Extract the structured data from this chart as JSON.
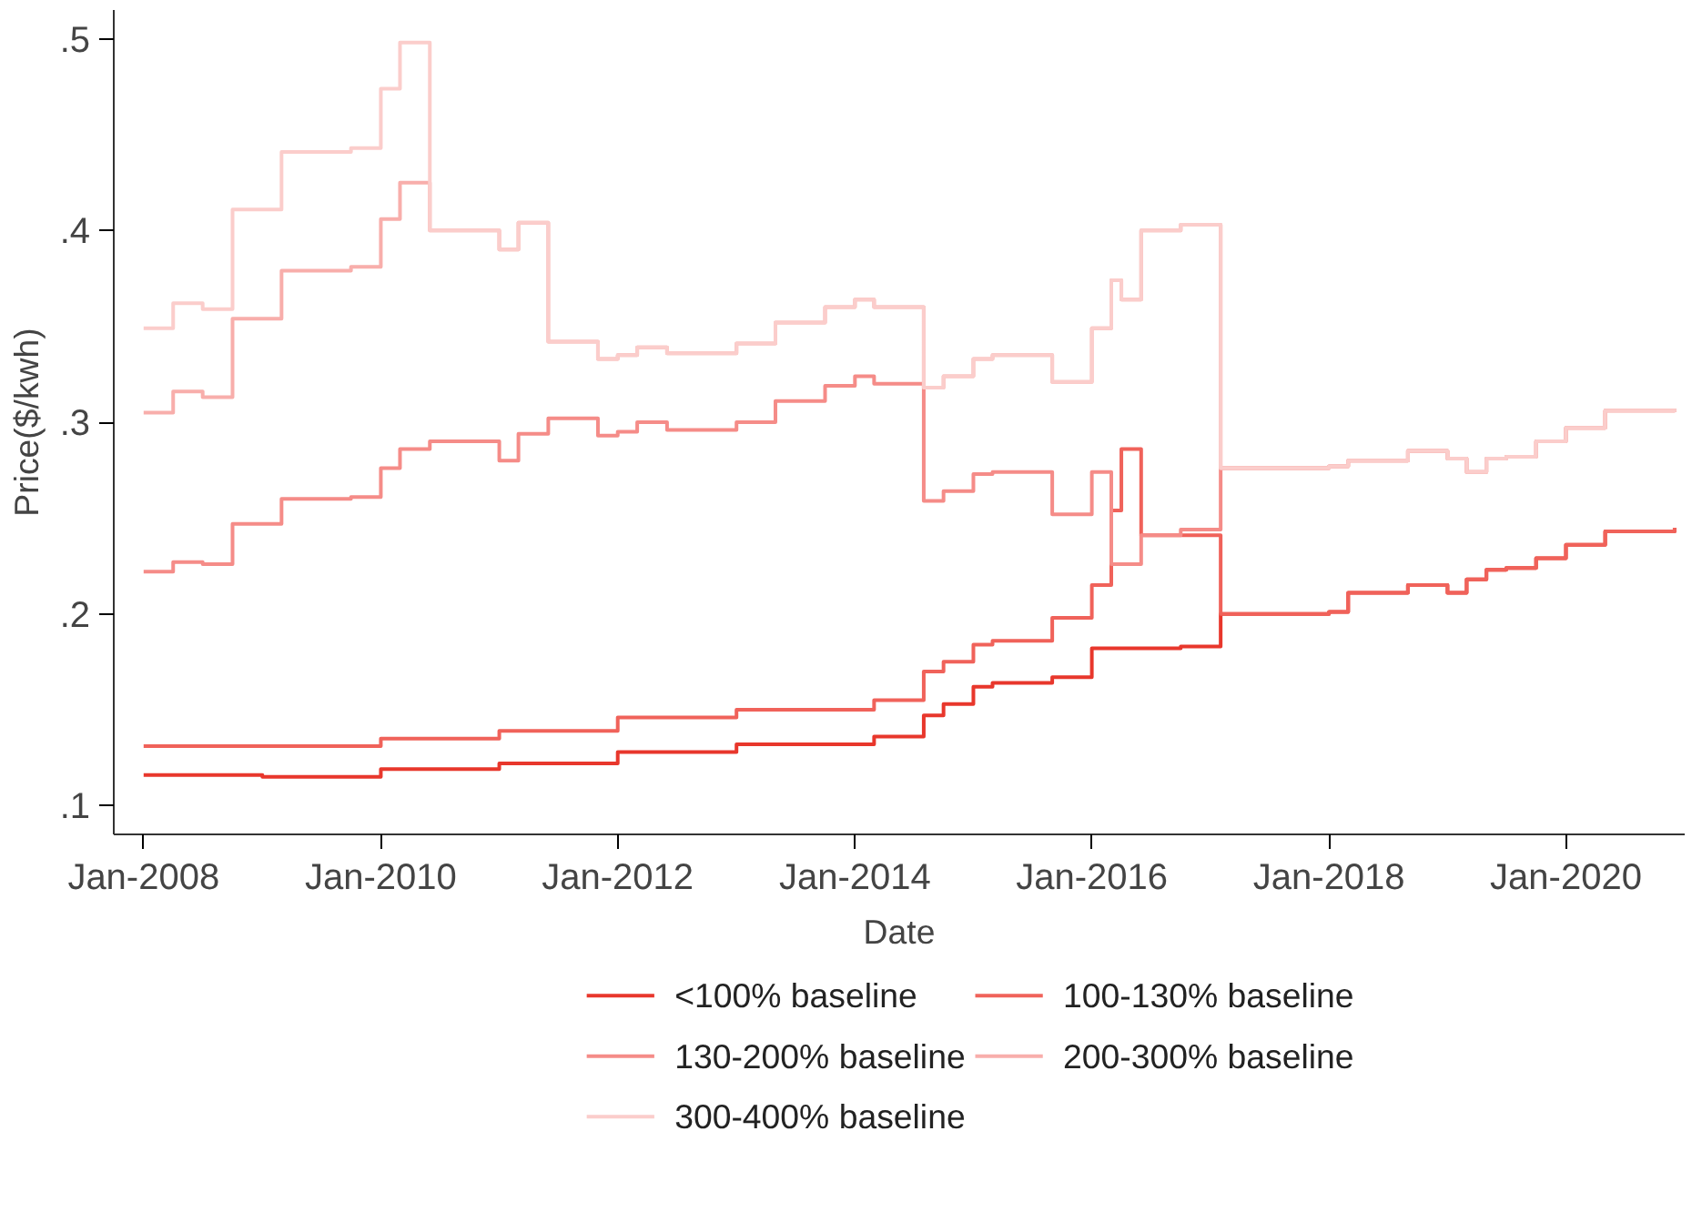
{
  "chart_data": {
    "type": "step",
    "xlabel": "Date",
    "ylabel": "Price($/kwh)",
    "xlim": [
      "2007-10",
      "2021-01"
    ],
    "ylim": [
      0.085,
      0.515
    ],
    "xticks": [
      {
        "value": "2008-01",
        "label": "Jan-2008"
      },
      {
        "value": "2010-01",
        "label": "Jan-2010"
      },
      {
        "value": "2012-01",
        "label": "Jan-2012"
      },
      {
        "value": "2014-01",
        "label": "Jan-2014"
      },
      {
        "value": "2016-01",
        "label": "Jan-2016"
      },
      {
        "value": "2018-01",
        "label": "Jan-2018"
      },
      {
        "value": "2020-01",
        "label": "Jan-2020"
      }
    ],
    "yticks": [
      {
        "value": 0.1,
        "label": ".1"
      },
      {
        "value": 0.2,
        "label": ".2"
      },
      {
        "value": 0.3,
        "label": ".3"
      },
      {
        "value": 0.4,
        "label": ".4"
      },
      {
        "value": 0.5,
        "label": ".5"
      }
    ],
    "grid": false,
    "legend": "bottom",
    "marker": "none",
    "line_style": "solid",
    "series": [
      {
        "name": "<100% baseline",
        "color": "#e8372c",
        "x": [
          "2008-01",
          "2009-01",
          "2010-01",
          "2011-01",
          "2012-01",
          "2013-01",
          "2014-03",
          "2014-08",
          "2014-10",
          "2015-01",
          "2015-03",
          "2015-09",
          "2016-01",
          "2016-10",
          "2017-02",
          "2018-01",
          "2018-03",
          "2018-09",
          "2019-01",
          "2019-03",
          "2019-05",
          "2019-07",
          "2019-10",
          "2020-01",
          "2020-05",
          "2020-12"
        ],
        "values": [
          0.116,
          0.115,
          0.119,
          0.122,
          0.128,
          0.132,
          0.136,
          0.147,
          0.153,
          0.162,
          0.164,
          0.167,
          0.182,
          0.183,
          0.2,
          0.201,
          0.211,
          0.215,
          0.211,
          0.218,
          0.223,
          0.224,
          0.229,
          0.236,
          0.243,
          0.245
        ]
      },
      {
        "name": "100-130% baseline",
        "color": "#f0625a",
        "x": [
          "2008-01",
          "2010-01",
          "2011-01",
          "2012-01",
          "2013-01",
          "2014-03",
          "2014-08",
          "2014-10",
          "2015-01",
          "2015-03",
          "2015-09",
          "2016-01",
          "2016-03",
          "2016-04",
          "2016-06",
          "2017-02",
          "2018-01",
          "2018-03",
          "2018-09",
          "2019-01",
          "2019-03",
          "2019-05",
          "2019-07",
          "2019-10",
          "2020-01",
          "2020-05",
          "2020-12"
        ],
        "values": [
          0.131,
          0.135,
          0.139,
          0.146,
          0.15,
          0.155,
          0.17,
          0.175,
          0.184,
          0.186,
          0.198,
          0.215,
          0.254,
          0.286,
          0.241,
          0.2,
          0.201,
          0.211,
          0.215,
          0.211,
          0.218,
          0.223,
          0.224,
          0.229,
          0.236,
          0.243,
          0.245
        ]
      },
      {
        "name": "130-200% baseline",
        "color": "#f58c88",
        "x": [
          "2008-01",
          "2008-04",
          "2008-07",
          "2008-10",
          "2009-03",
          "2009-10",
          "2010-01",
          "2010-03",
          "2010-06",
          "2011-01",
          "2011-03",
          "2011-06",
          "2011-11",
          "2012-01",
          "2012-03",
          "2012-06",
          "2013-01",
          "2013-05",
          "2013-10",
          "2014-01",
          "2014-03",
          "2014-08",
          "2014-10",
          "2015-01",
          "2015-03",
          "2015-09",
          "2016-01",
          "2016-03",
          "2016-06",
          "2016-10",
          "2017-02",
          "2018-01",
          "2018-03",
          "2018-09",
          "2019-01",
          "2019-03",
          "2019-05",
          "2019-07",
          "2019-10",
          "2020-01",
          "2020-05",
          "2020-12"
        ],
        "values": [
          0.222,
          0.227,
          0.226,
          0.247,
          0.26,
          0.261,
          0.276,
          0.286,
          0.29,
          0.28,
          0.294,
          0.302,
          0.293,
          0.295,
          0.3,
          0.296,
          0.3,
          0.311,
          0.319,
          0.324,
          0.32,
          0.259,
          0.264,
          0.273,
          0.274,
          0.252,
          0.274,
          0.226,
          0.241,
          0.244,
          0.276,
          0.277,
          0.28,
          0.285,
          0.281,
          0.274,
          0.281,
          0.282,
          0.29,
          0.297,
          0.306,
          0.307
        ]
      },
      {
        "name": "200-300% baseline",
        "color": "#f8aeab",
        "x": [
          "2008-01",
          "2008-04",
          "2008-07",
          "2008-10",
          "2009-03",
          "2009-10",
          "2010-01",
          "2010-03",
          "2010-06",
          "2011-01",
          "2011-03",
          "2011-06",
          "2011-11",
          "2012-01",
          "2012-03",
          "2012-06",
          "2013-01",
          "2013-05",
          "2013-10",
          "2014-01",
          "2014-03",
          "2014-08",
          "2014-10",
          "2015-01",
          "2015-03",
          "2015-09",
          "2016-01",
          "2016-03",
          "2016-04",
          "2016-06",
          "2016-10",
          "2017-02",
          "2018-01",
          "2018-03",
          "2018-09",
          "2019-01",
          "2019-03",
          "2019-05",
          "2019-07",
          "2019-10",
          "2020-01",
          "2020-05",
          "2020-12"
        ],
        "values": [
          0.305,
          0.316,
          0.313,
          0.354,
          0.379,
          0.381,
          0.406,
          0.425,
          0.4,
          0.39,
          0.404,
          0.342,
          0.333,
          0.335,
          0.339,
          0.336,
          0.341,
          0.352,
          0.36,
          0.364,
          0.36,
          0.318,
          0.324,
          0.333,
          0.335,
          0.321,
          0.349,
          0.374,
          0.364,
          0.4,
          0.403,
          0.276,
          0.277,
          0.28,
          0.285,
          0.281,
          0.274,
          0.281,
          0.282,
          0.29,
          0.297,
          0.306,
          0.307
        ]
      },
      {
        "name": "300-400% baseline",
        "color": "#fbcdcb",
        "x": [
          "2008-01",
          "2008-04",
          "2008-07",
          "2008-10",
          "2009-03",
          "2009-10",
          "2010-01",
          "2010-03",
          "2010-06",
          "2011-01",
          "2011-03",
          "2011-06",
          "2011-11",
          "2012-01",
          "2012-03",
          "2012-06",
          "2013-01",
          "2013-05",
          "2013-10",
          "2014-01",
          "2014-03",
          "2014-08",
          "2014-10",
          "2015-01",
          "2015-03",
          "2015-09",
          "2016-01",
          "2016-03",
          "2016-04",
          "2016-06",
          "2016-10",
          "2017-02",
          "2018-01",
          "2018-03",
          "2018-09",
          "2019-01",
          "2019-03",
          "2019-05",
          "2019-07",
          "2019-10",
          "2020-01",
          "2020-05",
          "2020-12"
        ],
        "values": [
          0.349,
          0.362,
          0.359,
          0.411,
          0.441,
          0.443,
          0.474,
          0.498,
          0.4,
          0.39,
          0.404,
          0.342,
          0.333,
          0.335,
          0.339,
          0.336,
          0.341,
          0.352,
          0.36,
          0.364,
          0.36,
          0.318,
          0.324,
          0.333,
          0.335,
          0.321,
          0.349,
          0.374,
          0.364,
          0.4,
          0.403,
          0.276,
          0.277,
          0.28,
          0.285,
          0.281,
          0.274,
          0.281,
          0.282,
          0.29,
          0.297,
          0.306,
          0.307
        ]
      }
    ]
  }
}
